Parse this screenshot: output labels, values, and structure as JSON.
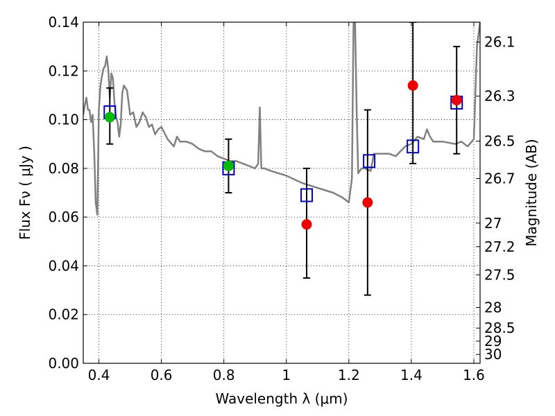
{
  "chart_data": {
    "type": "scatter",
    "xlabel": "Wavelength  λ (μm)",
    "ylabel": "Flux  Fν  ( μJy )",
    "right_ylabel": "Magnitude (AB)",
    "xlim": [
      0.35,
      1.62
    ],
    "ylim": [
      0.0,
      0.14
    ],
    "grid": true,
    "x_ticks": [
      0.4,
      0.6,
      0.8,
      1.0,
      1.2,
      1.4,
      1.6
    ],
    "x_tick_labels": [
      "0.4",
      "0.6",
      "0.8",
      "1",
      "1.2",
      "1.4",
      "1.6"
    ],
    "y_ticks": [
      0.0,
      0.02,
      0.04,
      0.06,
      0.08,
      0.1,
      0.12,
      0.14
    ],
    "y_tick_labels": [
      "0.00",
      "0.02",
      "0.04",
      "0.06",
      "0.08",
      "0.10",
      "0.12",
      "0.14"
    ],
    "right_ticks": [
      26.1,
      26.3,
      26.5,
      26.7,
      27,
      27.2,
      27.5,
      28,
      28.5,
      29,
      30
    ],
    "right_tick_labels": [
      "26.1",
      "26.3",
      "26.5",
      "26.7",
      "27",
      "27.2",
      "27.5",
      "28",
      "28.5",
      "29",
      "30"
    ],
    "colors": {
      "model": "#808080",
      "model_squares": "#0000cc",
      "green_points": "#00bb00",
      "red_points": "#ee0000",
      "errorbars": "#000000"
    },
    "series": [
      {
        "role": "template-spectrum",
        "type": "line",
        "x": [
          0.35,
          0.355,
          0.36,
          0.365,
          0.37,
          0.375,
          0.38,
          0.385,
          0.39,
          0.395,
          0.4,
          0.405,
          0.41,
          0.415,
          0.42,
          0.425,
          0.43,
          0.435,
          0.44,
          0.445,
          0.45,
          0.455,
          0.46,
          0.465,
          0.47,
          0.475,
          0.48,
          0.49,
          0.5,
          0.51,
          0.52,
          0.53,
          0.54,
          0.55,
          0.56,
          0.57,
          0.58,
          0.59,
          0.6,
          0.62,
          0.64,
          0.65,
          0.66,
          0.68,
          0.7,
          0.72,
          0.74,
          0.76,
          0.78,
          0.8,
          0.82,
          0.84,
          0.86,
          0.88,
          0.9,
          0.91,
          0.915,
          0.92,
          0.93,
          0.95,
          1.0,
          1.05,
          1.1,
          1.15,
          1.18,
          1.19,
          1.2,
          1.21,
          1.215,
          1.22,
          1.225,
          1.23,
          1.24,
          1.25,
          1.27,
          1.28,
          1.3,
          1.33,
          1.35,
          1.38,
          1.4,
          1.42,
          1.44,
          1.45,
          1.46,
          1.47,
          1.5,
          1.54,
          1.56,
          1.58,
          1.6,
          1.61,
          1.62
        ],
        "y": [
          0.102,
          0.106,
          0.109,
          0.104,
          0.104,
          0.099,
          0.102,
          0.087,
          0.066,
          0.061,
          0.104,
          0.114,
          0.118,
          0.121,
          0.122,
          0.126,
          0.121,
          0.109,
          0.119,
          0.117,
          0.107,
          0.101,
          0.099,
          0.093,
          0.098,
          0.111,
          0.114,
          0.112,
          0.102,
          0.103,
          0.097,
          0.099,
          0.103,
          0.101,
          0.097,
          0.098,
          0.094,
          0.096,
          0.097,
          0.092,
          0.089,
          0.093,
          0.091,
          0.091,
          0.09,
          0.088,
          0.087,
          0.087,
          0.085,
          0.084,
          0.083,
          0.083,
          0.082,
          0.081,
          0.08,
          0.082,
          0.105,
          0.08,
          0.08,
          0.079,
          0.077,
          0.074,
          0.072,
          0.07,
          0.068,
          0.067,
          0.066,
          0.076,
          0.14,
          0.14,
          0.104,
          0.078,
          0.08,
          0.08,
          0.079,
          0.086,
          0.086,
          0.086,
          0.085,
          0.089,
          0.09,
          0.093,
          0.092,
          0.096,
          0.093,
          0.091,
          0.091,
          0.09,
          0.091,
          0.089,
          0.092,
          0.13,
          0.14
        ]
      },
      {
        "role": "model-photometry",
        "type": "scatter",
        "marker": "square",
        "x": [
          0.435,
          0.815,
          1.065,
          1.265,
          1.405,
          1.545
        ],
        "y": [
          0.103,
          0.08,
          0.069,
          0.083,
          0.089,
          0.107
        ]
      },
      {
        "role": "detections",
        "type": "scatter",
        "marker": "circle",
        "x": [
          0.435,
          0.815
        ],
        "y": [
          0.101,
          0.081
        ]
      },
      {
        "role": "measurements",
        "type": "scatter",
        "marker": "circle",
        "x": [
          1.065,
          1.26,
          1.405,
          1.545
        ],
        "y": [
          0.057,
          0.066,
          0.114,
          0.108
        ]
      },
      {
        "role": "error-bars",
        "type": "errorbar",
        "x": [
          0.435,
          0.815,
          1.065,
          1.26,
          1.405,
          1.545
        ],
        "ylow": [
          0.09,
          0.07,
          0.035,
          0.028,
          0.082,
          0.086
        ],
        "yhigh": [
          0.113,
          0.092,
          0.08,
          0.104,
          0.14,
          0.13
        ]
      }
    ]
  }
}
